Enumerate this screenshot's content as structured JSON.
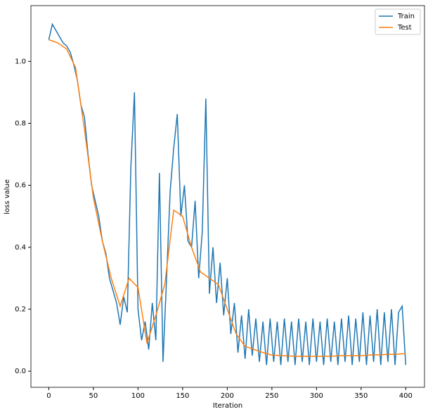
{
  "chart_data": {
    "type": "line",
    "xlabel": "Iteration",
    "ylabel": "loss value",
    "xlim": [
      -20,
      421
    ],
    "ylim": [
      -0.052,
      1.18
    ],
    "xticks": [
      0,
      50,
      100,
      150,
      200,
      250,
      300,
      350,
      400
    ],
    "yticks": [
      {
        "value": 0.0,
        "label": "0.0"
      },
      0.2,
      0.4,
      0.6,
      0.8,
      {
        "value": 1.0,
        "label": "1.0"
      }
    ],
    "legend": "upper right",
    "series": [
      {
        "name": "Train",
        "color": "#1f77b4",
        "x": [
          0,
          4,
          8,
          12,
          16,
          20,
          24,
          28,
          32,
          36,
          40,
          44,
          48,
          52,
          56,
          60,
          64,
          68,
          72,
          76,
          80,
          84,
          88,
          92,
          96,
          100,
          104,
          108,
          112,
          116,
          120,
          124,
          128,
          132,
          136,
          140,
          144,
          148,
          152,
          156,
          160,
          164,
          168,
          172,
          176,
          180,
          184,
          188,
          192,
          196,
          200,
          204,
          208,
          212,
          216,
          220,
          224,
          228,
          232,
          236,
          240,
          244,
          248,
          252,
          256,
          260,
          264,
          268,
          272,
          276,
          280,
          284,
          288,
          292,
          296,
          300,
          304,
          308,
          312,
          316,
          320,
          324,
          328,
          332,
          336,
          340,
          344,
          348,
          352,
          356,
          360,
          364,
          368,
          372,
          376,
          380,
          384,
          388,
          392,
          396,
          400
        ],
        "values": [
          1.07,
          1.12,
          1.1,
          1.08,
          1.06,
          1.05,
          1.03,
          0.99,
          0.94,
          0.86,
          0.82,
          0.7,
          0.6,
          0.55,
          0.5,
          0.42,
          0.38,
          0.3,
          0.26,
          0.22,
          0.15,
          0.24,
          0.19,
          0.66,
          0.9,
          0.2,
          0.1,
          0.16,
          0.07,
          0.22,
          0.1,
          0.64,
          0.03,
          0.3,
          0.58,
          0.72,
          0.83,
          0.5,
          0.6,
          0.42,
          0.4,
          0.55,
          0.3,
          0.45,
          0.88,
          0.25,
          0.4,
          0.22,
          0.35,
          0.18,
          0.3,
          0.12,
          0.22,
          0.06,
          0.18,
          0.04,
          0.2,
          0.05,
          0.17,
          0.03,
          0.16,
          0.02,
          0.17,
          0.03,
          0.16,
          0.02,
          0.17,
          0.03,
          0.16,
          0.02,
          0.17,
          0.03,
          0.16,
          0.02,
          0.17,
          0.03,
          0.16,
          0.02,
          0.17,
          0.03,
          0.16,
          0.02,
          0.17,
          0.03,
          0.18,
          0.02,
          0.17,
          0.03,
          0.19,
          0.02,
          0.18,
          0.03,
          0.2,
          0.02,
          0.19,
          0.03,
          0.2,
          0.02,
          0.19,
          0.21,
          0.02
        ]
      },
      {
        "name": "Test",
        "color": "#ff7f0e",
        "x": [
          0,
          10,
          20,
          30,
          40,
          50,
          60,
          70,
          80,
          90,
          100,
          110,
          120,
          130,
          140,
          150,
          160,
          170,
          180,
          190,
          200,
          210,
          220,
          230,
          240,
          250,
          260,
          270,
          280,
          290,
          300,
          310,
          320,
          330,
          340,
          350,
          360,
          370,
          380,
          390,
          400
        ],
        "values": [
          1.07,
          1.06,
          1.04,
          0.98,
          0.78,
          0.56,
          0.42,
          0.3,
          0.21,
          0.3,
          0.27,
          0.09,
          0.18,
          0.28,
          0.52,
          0.5,
          0.4,
          0.32,
          0.3,
          0.28,
          0.2,
          0.12,
          0.08,
          0.07,
          0.06,
          0.052,
          0.05,
          0.049,
          0.048,
          0.048,
          0.048,
          0.048,
          0.049,
          0.05,
          0.05,
          0.05,
          0.052,
          0.053,
          0.054,
          0.055,
          0.057
        ]
      }
    ]
  }
}
